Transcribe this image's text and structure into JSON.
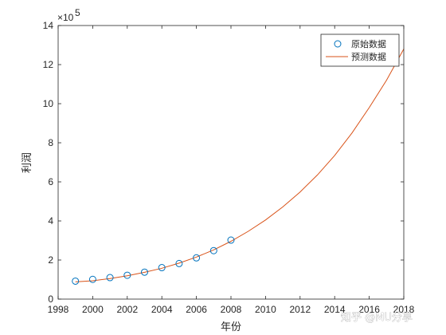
{
  "chart_data": {
    "type": "line",
    "xlabel": "年份",
    "ylabel": "利润",
    "exponent_label": "×10",
    "exponent_power": "5",
    "xlim": [
      1998,
      2018
    ],
    "ylim": [
      0,
      14
    ],
    "y_scale_factor": 100000,
    "xticks": [
      "1998",
      "2000",
      "2002",
      "2004",
      "2006",
      "2008",
      "2010",
      "2012",
      "2014",
      "2016",
      "2018"
    ],
    "yticks": [
      "0",
      "2",
      "4",
      "6",
      "8",
      "10",
      "12",
      "14"
    ],
    "legend_position": "top-right",
    "series": [
      {
        "name": "原始数据",
        "kind": "markers",
        "marker": "circle-open",
        "color": "#0072BD",
        "x": [
          1999,
          2000,
          2001,
          2002,
          2003,
          2004,
          2005,
          2006,
          2007,
          2008
        ],
        "y": [
          0.92,
          1.01,
          1.1,
          1.22,
          1.38,
          1.61,
          1.82,
          2.11,
          2.48,
          3.02
        ]
      },
      {
        "name": "预测数据",
        "kind": "line",
        "color": "#D95319",
        "x": [
          1999,
          2000,
          2001,
          2002,
          2003,
          2004,
          2005,
          2006,
          2007,
          2008,
          2009,
          2010,
          2011,
          2012,
          2013,
          2014,
          2015,
          2016,
          2017,
          2018
        ],
        "y": [
          0.88,
          0.94,
          1.05,
          1.19,
          1.37,
          1.58,
          1.84,
          2.15,
          2.52,
          2.96,
          3.47,
          4.05,
          4.72,
          5.48,
          6.35,
          7.35,
          8.5,
          9.8,
          11.2,
          12.8
        ]
      }
    ]
  },
  "watermark": {
    "text": "知乎 @MU分享"
  }
}
